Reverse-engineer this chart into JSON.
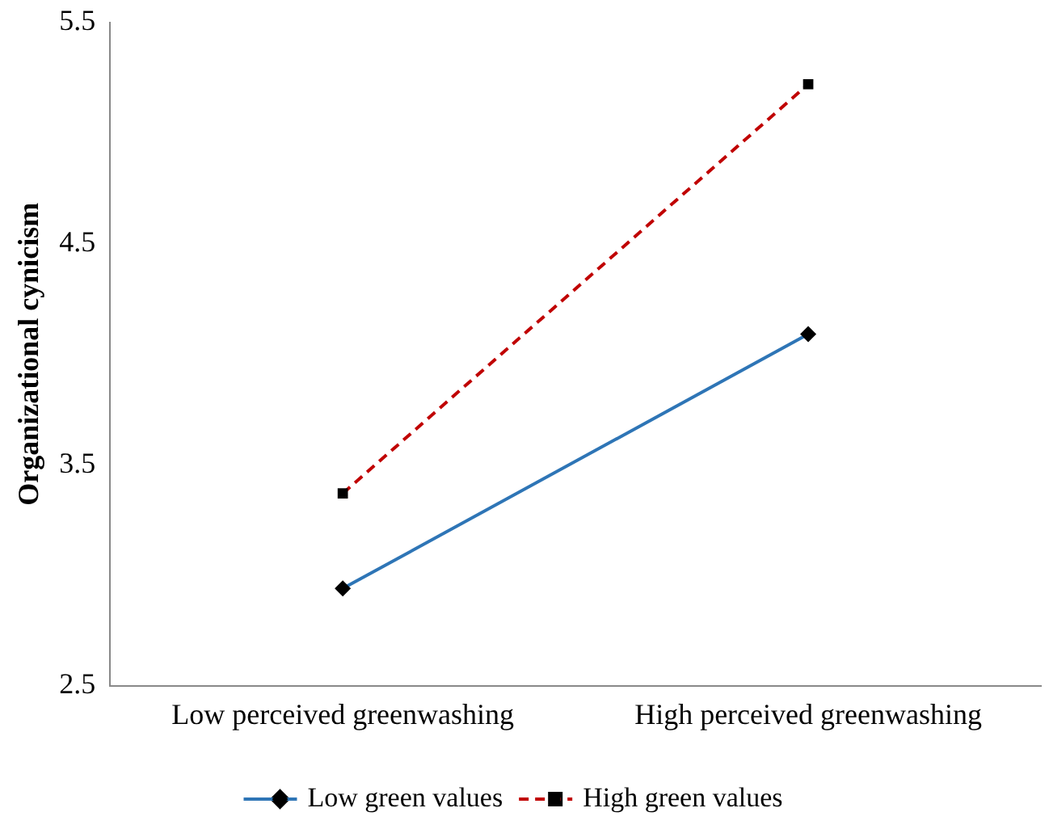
{
  "chart_data": {
    "type": "line",
    "ylabel": "Organizational cynicism",
    "categories": [
      "Low perceived greenwashing",
      "High perceived greenwashing"
    ],
    "series": [
      {
        "name": "Low green values",
        "color": "#2e75b6",
        "values": [
          2.94,
          4.09
        ],
        "marker": "diamond",
        "line_style": "solid"
      },
      {
        "name": "High green values",
        "color": "#c00000",
        "values": [
          3.37,
          5.22
        ],
        "marker": "square",
        "line_style": "dashed"
      }
    ],
    "ylim": [
      2.5,
      5.5
    ],
    "yticks": [
      2.5,
      3.5,
      4.5,
      5.5
    ],
    "grid": false,
    "legend": "bottom"
  }
}
